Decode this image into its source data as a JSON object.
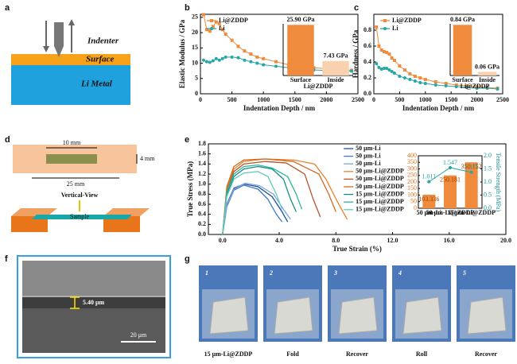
{
  "panel_labels": [
    "a",
    "b",
    "c",
    "d",
    "e",
    "f",
    "g"
  ],
  "diagram_a": {
    "labels": [
      "Indenter",
      "Surface",
      "Li Metal"
    ]
  },
  "diagram_d": {
    "dims": [
      "10 mm",
      "4 mm",
      "25 mm"
    ],
    "view": "Vertical-View",
    "sample": "Sample"
  },
  "image_f": {
    "thickness": "5.40 μm",
    "scale": "20 μm"
  },
  "photos_g": {
    "numbers": [
      "1",
      "2",
      "3",
      "4",
      "5"
    ],
    "captions": [
      "15 μm-Li@ZDDP",
      "Fold",
      "Recover",
      "Roll",
      "Recover"
    ]
  },
  "chart_data": [
    {
      "type": "line",
      "x_label": "Indentation Depth / nm",
      "y_label": "Elastic Modulus / GPa",
      "x": [
        50,
        100,
        150,
        200,
        250,
        300,
        350,
        400,
        500,
        600,
        700,
        800,
        900,
        1000,
        1200,
        1400,
        1600,
        1800,
        2000,
        2200,
        2400
      ],
      "series": [
        {
          "name": "Li@ZDDP",
          "color": "#f08a3c",
          "marker": "square",
          "values": [
            25.9,
            21,
            20.5,
            22,
            23.5,
            23,
            21,
            19.5,
            17.5,
            15.5,
            14,
            13,
            12,
            11.5,
            10.5,
            9.5,
            9,
            8.5,
            8.2,
            8,
            7.7
          ]
        },
        {
          "name": "Li",
          "color": "#26a6a6",
          "marker": "circle",
          "values": [
            11,
            10.5,
            10.3,
            10.8,
            11.5,
            11,
            11.5,
            12,
            12,
            11.8,
            11,
            10.5,
            10,
            9.5,
            9,
            8.5,
            8,
            7.8,
            7.6,
            7.5,
            7.4
          ]
        }
      ],
      "xlim": [
        0,
        2500
      ],
      "xticks": [
        0,
        500,
        1000,
        1500,
        2000,
        2500
      ],
      "ylim": [
        0,
        26
      ],
      "yticks": [
        0,
        5,
        10,
        15,
        20,
        25
      ],
      "legend": "upper left"
    },
    {
      "type": "line",
      "x_label": "Indentation Depth / nm",
      "y_label": "Hardness / GPa",
      "x": [
        50,
        100,
        150,
        200,
        250,
        300,
        350,
        400,
        500,
        600,
        700,
        800,
        900,
        1000,
        1200,
        1400,
        1600,
        1800,
        2000,
        2200,
        2400
      ],
      "series": [
        {
          "name": "Li@ZDDP",
          "color": "#f08a3c",
          "marker": "square",
          "values": [
            0.84,
            0.6,
            0.55,
            0.53,
            0.52,
            0.5,
            0.45,
            0.42,
            0.35,
            0.3,
            0.25,
            0.22,
            0.2,
            0.18,
            0.15,
            0.13,
            0.11,
            0.1,
            0.09,
            0.08,
            0.07
          ]
        },
        {
          "name": "Li",
          "color": "#26a6a6",
          "marker": "circle",
          "values": [
            0.38,
            0.33,
            0.31,
            0.32,
            0.32,
            0.3,
            0.28,
            0.26,
            0.22,
            0.2,
            0.18,
            0.16,
            0.14,
            0.13,
            0.11,
            0.1,
            0.09,
            0.08,
            0.07,
            0.07,
            0.06
          ]
        }
      ],
      "xlim": [
        0,
        2500
      ],
      "xticks": [
        0,
        500,
        1000,
        1500,
        2000,
        2500
      ],
      "ylim": [
        0,
        1.0
      ],
      "yticks": [
        {
          "value": 0,
          "label": "0.0"
        },
        0.2,
        0.4,
        0.6,
        0.8
      ],
      "legend": "upper left"
    },
    {
      "type": "line",
      "x_label": "True Strain (%)",
      "y_label": "True Stress (MPa)",
      "series": [
        {
          "name": "50 μm-Li",
          "color": "#1f4e9c",
          "x": [
            0,
            0.3,
            0.8,
            1.5,
            2.5,
            3.5,
            4.2,
            4.6
          ],
          "values": [
            0,
            0.6,
            0.92,
            1.0,
            0.95,
            0.75,
            0.45,
            0.25
          ]
        },
        {
          "name": "50 μm-Li",
          "color": "#3f78c8",
          "x": [
            0,
            0.3,
            0.8,
            1.5,
            2.5,
            3.2,
            3.8,
            4.2
          ],
          "values": [
            0,
            0.55,
            0.88,
            0.98,
            0.9,
            0.7,
            0.4,
            0.25
          ]
        },
        {
          "name": "50 μm-Li",
          "color": "#7aa6dc",
          "x": [
            0,
            0.3,
            0.8,
            1.6,
            2.6,
            3.6,
            4.3,
            4.8
          ],
          "values": [
            0,
            0.58,
            0.9,
            1.02,
            0.97,
            0.8,
            0.5,
            0.3
          ]
        },
        {
          "name": "50 μm-Li@ZDDP",
          "color": "#e6822e",
          "x": [
            0,
            0.3,
            0.8,
            1.5,
            3,
            5,
            6.5,
            7.3,
            8.2,
            8.8
          ],
          "values": [
            0,
            0.9,
            1.3,
            1.45,
            1.5,
            1.48,
            1.4,
            1.1,
            0.6,
            0.3
          ]
        },
        {
          "name": "50 μm-Li@ZDDP",
          "color": "#b5542a",
          "x": [
            0,
            0.3,
            0.8,
            1.5,
            3,
            4.5,
            5.8,
            6.4,
            6.9
          ],
          "values": [
            0,
            0.85,
            1.25,
            1.4,
            1.45,
            1.42,
            1.2,
            0.7,
            0.35
          ]
        },
        {
          "name": "50 μm-Li@ZDDP",
          "color": "#d2691e",
          "x": [
            0,
            0.3,
            0.8,
            1.5,
            3,
            5,
            6.8,
            7.5,
            8.0
          ],
          "values": [
            0,
            0.95,
            1.35,
            1.48,
            1.5,
            1.45,
            1.2,
            0.8,
            0.45
          ]
        },
        {
          "name": "15 μm-Li@ZDDP",
          "color": "#138f82",
          "x": [
            0,
            0.3,
            0.8,
            1.5,
            2.5,
            3.5,
            4.3,
            4.8,
            5.2
          ],
          "values": [
            0,
            0.8,
            1.15,
            1.3,
            1.35,
            1.3,
            1.1,
            0.7,
            0.45
          ]
        },
        {
          "name": "15 μm-Li@ZDDP",
          "color": "#2bb5a0",
          "x": [
            0,
            0.3,
            0.8,
            1.5,
            2.5,
            3.5,
            4.6,
            5.2,
            5.6
          ],
          "values": [
            0,
            0.85,
            1.2,
            1.35,
            1.38,
            1.32,
            1.15,
            0.8,
            0.5
          ]
        },
        {
          "name": "15 μm-Li@ZDDP",
          "color": "#62cbbb",
          "x": [
            0,
            0.3,
            0.8,
            1.5,
            2.5,
            3.2,
            3.8,
            4.2
          ],
          "values": [
            0,
            0.75,
            1.1,
            1.22,
            1.25,
            1.15,
            0.8,
            0.5
          ]
        }
      ],
      "xlim": [
        -1,
        20
      ],
      "xticks": [
        {
          "value": 0,
          "label": "0.0"
        },
        {
          "value": 4,
          "label": "4.0"
        },
        {
          "value": 8,
          "label": "8.0"
        },
        {
          "value": 12,
          "label": "12.0"
        },
        {
          "value": 16,
          "label": "16.0"
        },
        {
          "value": 20,
          "label": "20.0"
        }
      ],
      "ylim": [
        0,
        1.8
      ],
      "yticks": [
        {
          "value": 0,
          "label": "0.0"
        },
        0.2,
        0.4,
        0.6,
        0.8,
        {
          "value": 1,
          "label": "1.0"
        },
        1.2,
        1.4,
        1.6,
        1.8
      ],
      "legend": "right"
    },
    {
      "type": "bar",
      "categories": [
        "Surface",
        "Inside"
      ],
      "values": [
        25.9,
        7.43
      ],
      "value_labels": [
        "25.90 GPa",
        "7.43 GPa"
      ],
      "colors": [
        "#f08a3c",
        "#f9d2ad"
      ],
      "x_label": "Li@ZDDP"
    },
    {
      "type": "bar",
      "categories": [
        "Surface",
        "Inside"
      ],
      "values": [
        0.84,
        0.06
      ],
      "value_labels": [
        "0.84 GPa",
        "0.06 GPa"
      ],
      "colors": [
        "#f08a3c",
        "#f9d2ad"
      ],
      "x_label": "Li@ZDDP"
    },
    {
      "type": "bar_line",
      "categories": [
        "50 μm-Li",
        "50 μm-Li@ZDDP",
        "15 μm-Li@ZDDP"
      ],
      "y2_label": "Tensile Strength (MPa)",
      "series": [
        {
          "color": "#f08a3c",
          "values": [
            103.336,
            250.181,
            350.152
          ]
        },
        {
          "color": "#26a6a6",
          "values": [
            1.011,
            1.547,
            1.371
          ],
          "axis": "y2"
        }
      ],
      "ylim": [
        0,
        400
      ],
      "yticks": [
        0,
        50,
        100,
        150,
        200,
        250,
        300,
        350,
        400
      ],
      "y2lim": [
        0,
        2.0
      ],
      "y2ticks": [
        {
          "value": 0,
          "label": "0.0"
        },
        0.5,
        {
          "value": 1,
          "label": "1.0"
        },
        1.5,
        {
          "value": 2,
          "label": "2.0"
        }
      ]
    }
  ]
}
